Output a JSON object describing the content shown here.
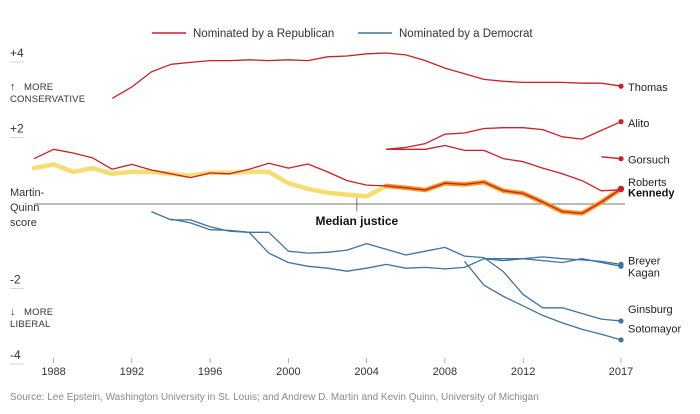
{
  "legend": {
    "republican_label": "Nominated by a Republican",
    "democrat_label": "Nominated by a Democrat"
  },
  "annotations": {
    "more_conservative_line1": "MORE",
    "more_conservative_line2": "CONSERVATIVE",
    "more_liberal_line1": "MORE",
    "more_liberal_line2": "LIBERAL",
    "y_axis_line1": "Martin-",
    "y_axis_line2": "Quinn",
    "y_axis_line3": "score",
    "median_label": "Median justice",
    "up_arrow": "↑",
    "down_arrow": "↓"
  },
  "source": "Source: Lee Epstein, Washington University in St. Louis; and Andrew D. Martin and Kevin Quinn, University of Michigan",
  "colors": {
    "republican": "#cc1f2b",
    "democrat": "#3f73a0",
    "median": "#f7dc6f",
    "kennedy_highlight": "#f29a1e",
    "zero_line": "#777777"
  },
  "chart_data": {
    "type": "line",
    "title": "",
    "xlabel": "",
    "ylabel": "Martin-Quinn score",
    "xlim": [
      1987,
      2017
    ],
    "ylim": [
      -4,
      4
    ],
    "x_ticks": [
      1988,
      1992,
      1996,
      2000,
      2004,
      2008,
      2012,
      2017
    ],
    "y_ticks": [
      {
        "value": 4,
        "label": "+4"
      },
      {
        "value": 2,
        "label": "+2"
      },
      {
        "value": -2,
        "label": "-2"
      },
      {
        "value": -4,
        "label": "-4"
      }
    ],
    "series": [
      {
        "name": "Thomas",
        "party": "republican",
        "x": [
          1991,
          1992,
          1993,
          1994,
          1995,
          1996,
          1997,
          1998,
          1999,
          2000,
          2001,
          2002,
          2003,
          2004,
          2005,
          2006,
          2007,
          2008,
          2009,
          2010,
          2011,
          2012,
          2013,
          2014,
          2015,
          2016,
          2017
        ],
        "y": [
          2.8,
          3.1,
          3.5,
          3.7,
          3.75,
          3.8,
          3.8,
          3.82,
          3.8,
          3.82,
          3.8,
          3.9,
          3.92,
          3.98,
          4.0,
          3.95,
          3.8,
          3.6,
          3.45,
          3.3,
          3.25,
          3.22,
          3.22,
          3.22,
          3.2,
          3.2,
          3.12
        ]
      },
      {
        "name": "Alito",
        "party": "republican",
        "x": [
          2005,
          2006,
          2007,
          2008,
          2009,
          2010,
          2011,
          2012,
          2013,
          2014,
          2015,
          2016,
          2017
        ],
        "y": [
          1.45,
          1.5,
          1.6,
          1.85,
          1.88,
          2.0,
          2.02,
          2.02,
          1.97,
          1.78,
          1.72,
          1.95,
          2.18
        ]
      },
      {
        "name": "Gorsuch",
        "party": "republican",
        "x": [
          2016,
          2017
        ],
        "y": [
          1.25,
          1.2
        ]
      },
      {
        "name": "Roberts",
        "party": "republican",
        "x": [
          2005,
          2006,
          2007,
          2008,
          2009,
          2010,
          2011,
          2012,
          2013,
          2014,
          2015,
          2016,
          2017
        ],
        "y": [
          1.45,
          1.45,
          1.45,
          1.55,
          1.42,
          1.42,
          1.2,
          1.12,
          0.95,
          0.8,
          0.62,
          0.35,
          0.38
        ]
      },
      {
        "name": "Kennedy",
        "party": "republican",
        "highlight": true,
        "x": [
          1987,
          1988,
          1989,
          1990,
          1991,
          1992,
          1993,
          1994,
          1995,
          1996,
          1997,
          1998,
          1999,
          2000,
          2001,
          2002,
          2003,
          2004,
          2005,
          2006,
          2007,
          2008,
          2009,
          2010,
          2011,
          2012,
          2013,
          2014,
          2015,
          2016,
          2017
        ],
        "y": [
          1.2,
          1.45,
          1.35,
          1.22,
          0.92,
          1.05,
          0.9,
          0.8,
          0.7,
          0.82,
          0.8,
          0.92,
          1.08,
          0.95,
          1.06,
          0.85,
          0.62,
          0.5,
          0.48,
          0.43,
          0.37,
          0.55,
          0.52,
          0.58,
          0.35,
          0.28,
          0.05,
          -0.2,
          -0.25,
          0.05,
          0.4
        ]
      },
      {
        "name": "Median justice",
        "party": "median",
        "x": [
          1987,
          1988,
          1989,
          1990,
          1991,
          1992,
          1993,
          1994,
          1995,
          1996,
          1997,
          1998,
          1999,
          2000,
          2001,
          2002,
          2003,
          2004,
          2005,
          2006,
          2007,
          2008,
          2009,
          2010,
          2011,
          2012,
          2013,
          2014,
          2015,
          2016,
          2017
        ],
        "y": [
          0.95,
          1.05,
          0.85,
          0.95,
          0.8,
          0.85,
          0.85,
          0.8,
          0.75,
          0.83,
          0.83,
          0.85,
          0.85,
          0.55,
          0.4,
          0.3,
          0.25,
          0.2,
          0.48,
          0.43,
          0.37,
          0.55,
          0.52,
          0.58,
          0.35,
          0.28,
          0.05,
          -0.2,
          -0.25,
          0.05,
          0.4
        ]
      },
      {
        "name": "Breyer",
        "party": "democrat",
        "x": [
          1994,
          1995,
          1996,
          1997,
          1998,
          1999,
          2000,
          2001,
          2002,
          2003,
          2004,
          2005,
          2006,
          2007,
          2008,
          2009,
          2010,
          2011,
          2012,
          2013,
          2014,
          2015,
          2016,
          2017
        ],
        "y": [
          -0.4,
          -0.5,
          -0.68,
          -0.7,
          -0.75,
          -1.3,
          -1.55,
          -1.65,
          -1.7,
          -1.78,
          -1.7,
          -1.6,
          -1.7,
          -1.68,
          -1.72,
          -1.68,
          -1.45,
          -1.5,
          -1.45,
          -1.4,
          -1.45,
          -1.48,
          -1.52,
          -1.6
        ]
      },
      {
        "name": "Kagan",
        "party": "democrat",
        "x": [
          2010,
          2011,
          2012,
          2013,
          2014,
          2015,
          2016,
          2017
        ],
        "y": [
          -1.45,
          -1.45,
          -1.45,
          -1.5,
          -1.55,
          -1.45,
          -1.55,
          -1.65
        ]
      },
      {
        "name": "Ginsburg",
        "party": "democrat",
        "x": [
          1993,
          1994,
          1995,
          1996,
          1997,
          1998,
          1999,
          2000,
          2001,
          2002,
          2003,
          2004,
          2005,
          2006,
          2007,
          2008,
          2009,
          2010,
          2011,
          2012,
          2013,
          2014,
          2015,
          2016,
          2017
        ],
        "y": [
          -0.2,
          -0.42,
          -0.42,
          -0.6,
          -0.72,
          -0.75,
          -0.75,
          -1.25,
          -1.3,
          -1.28,
          -1.22,
          -1.05,
          -1.2,
          -1.35,
          -1.25,
          -1.15,
          -1.38,
          -1.42,
          -1.8,
          -2.4,
          -2.75,
          -2.75,
          -2.9,
          -3.05,
          -3.1
        ]
      },
      {
        "name": "Sotomayor",
        "party": "democrat",
        "x": [
          2009,
          2010,
          2011,
          2012,
          2013,
          2014,
          2015,
          2016,
          2017
        ],
        "y": [
          -1.52,
          -2.15,
          -2.45,
          -2.7,
          -2.95,
          -3.15,
          -3.32,
          -3.45,
          -3.6
        ]
      }
    ]
  }
}
